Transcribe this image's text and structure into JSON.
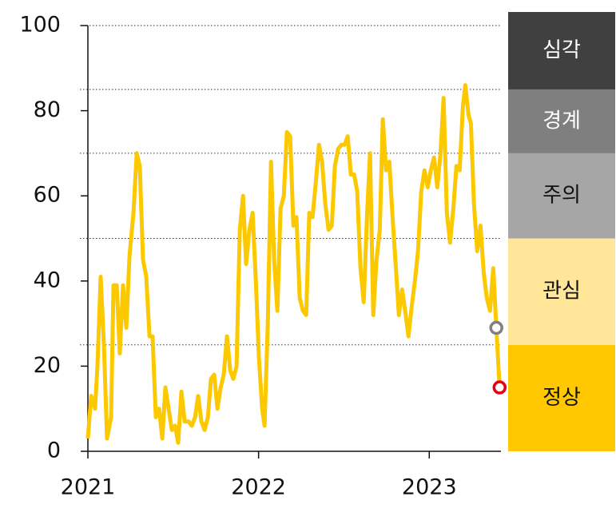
{
  "chart_data": {
    "type": "line",
    "color": "#fcc800",
    "xlim": [
      2021,
      2023.42
    ],
    "xticks": [
      2021,
      2022,
      2023
    ],
    "ylim": [
      0,
      100
    ],
    "yticks": [
      0,
      20,
      40,
      60,
      80,
      100
    ],
    "bands": [
      {
        "name": "정상",
        "from": 0,
        "to": 25,
        "color": "#ffc800",
        "text_color": "#111111"
      },
      {
        "name": "관심",
        "from": 25,
        "to": 50,
        "color": "#ffe699",
        "text_color": "#111111"
      },
      {
        "name": "주의",
        "from": 50,
        "to": 70,
        "color": "#a6a6a6",
        "text_color": "#111111"
      },
      {
        "name": "경계",
        "from": 70,
        "to": 85,
        "color": "#7f7f7f",
        "text_color": "#ffffff"
      },
      {
        "name": "심각",
        "from": 85,
        "to": 100,
        "color": "#404040",
        "text_color": "#ffffff"
      }
    ],
    "x": [
      2021,
      2021.019,
      2021.042,
      2021.056,
      2021.075,
      2021.094,
      2021.112,
      2021.136,
      2021.15,
      2021.169,
      2021.187,
      2021.206,
      2021.225,
      2021.244,
      2021.267,
      2021.286,
      2021.304,
      2021.323,
      2021.342,
      2021.361,
      2021.379,
      2021.398,
      2021.417,
      2021.436,
      2021.454,
      2021.473,
      2021.492,
      2021.511,
      2021.529,
      2021.548,
      2021.567,
      2021.59,
      2021.609,
      2021.628,
      2021.646,
      2021.665,
      2021.684,
      2021.703,
      2021.721,
      2021.74,
      2021.759,
      2021.778,
      2021.796,
      2021.815,
      2021.834,
      2021.852,
      2021.871,
      2021.89,
      2021.909,
      2021.927,
      2021.946,
      2021.965,
      2021.984,
      2022.002,
      2022.021,
      2022.035,
      2022.054,
      2022.073,
      2022.091,
      2022.11,
      2022.129,
      2022.148,
      2022.166,
      2022.185,
      2022.204,
      2022.222,
      2022.241,
      2022.26,
      2022.279,
      2022.297,
      2022.316,
      2022.335,
      2022.354,
      2022.372,
      2022.391,
      2022.41,
      2022.429,
      2022.447,
      2022.466,
      2022.485,
      2022.504,
      2022.522,
      2022.541,
      2022.56,
      2022.578,
      2022.597,
      2022.616,
      2022.635,
      2022.653,
      2022.672,
      2022.691,
      2022.71,
      2022.728,
      2022.747,
      2022.766,
      2022.785,
      2022.803,
      2022.822,
      2022.841,
      2022.859,
      2022.878,
      2022.897,
      2022.916,
      2022.934,
      2022.953,
      2022.972,
      2022.991,
      2023.009,
      2023.028,
      2023.047,
      2023.066,
      2023.084,
      2023.103,
      2023.122,
      2023.141,
      2023.159,
      2023.178,
      2023.197,
      2023.211,
      2023.23,
      2023.244,
      2023.262,
      2023.281,
      2023.3,
      2023.319,
      2023.337,
      2023.356,
      2023.375,
      2023.393,
      2023.412
    ],
    "values": [
      3,
      13,
      10,
      20,
      41,
      25,
      3,
      8,
      39,
      39,
      23,
      39,
      29,
      46,
      56,
      70,
      67,
      45,
      41,
      27,
      27,
      8,
      10,
      3,
      15,
      10,
      5,
      6,
      2,
      14,
      7,
      7,
      6,
      8,
      13,
      7,
      5,
      8,
      17,
      18,
      10,
      15,
      18,
      27,
      19,
      17,
      20,
      52,
      60,
      44,
      52,
      56,
      40,
      22,
      10,
      6,
      30,
      68,
      45,
      33,
      57,
      60,
      75,
      74,
      53,
      55,
      36,
      33,
      32,
      56,
      55,
      63,
      72,
      68,
      58,
      52,
      53,
      67,
      71,
      72,
      72,
      74,
      65,
      65,
      61,
      43,
      35,
      55,
      70,
      32,
      45,
      52,
      78,
      66,
      68,
      55,
      44,
      32,
      38,
      33,
      27,
      34,
      40,
      47,
      61,
      66,
      62,
      66,
      69,
      62,
      70,
      83,
      56,
      49,
      57,
      67,
      66,
      81,
      86,
      79,
      77,
      58,
      47,
      53,
      42,
      36,
      33,
      43,
      29,
      15
    ],
    "markers": [
      {
        "x": 2023.393,
        "value": 29,
        "color": "#808080"
      },
      {
        "x": 2023.412,
        "value": 15,
        "color": "#e60012"
      }
    ]
  }
}
